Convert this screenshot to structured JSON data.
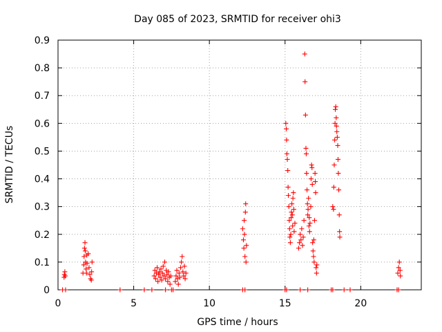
{
  "chart_data": {
    "type": "scatter",
    "title": "Day 085 of 2023, SRMTID for receiver ohi3",
    "xlabel": "GPS time / hours",
    "ylabel": "SRMTID / TECUs",
    "xlim": [
      0,
      24
    ],
    "ylim": [
      0,
      0.9
    ],
    "xticks": [
      0,
      5,
      10,
      15,
      20
    ],
    "xtick_labels": [
      "0",
      "5",
      "10",
      "15",
      "20"
    ],
    "yticks": [
      0,
      0.1,
      0.2,
      0.3,
      0.4,
      0.5,
      0.6,
      0.7,
      0.8,
      0.9
    ],
    "ytick_labels": [
      "0",
      "0.1",
      "0.2",
      "0.3",
      "0.4",
      "0.5",
      "0.6",
      "0.7",
      "0.8",
      "0.9"
    ],
    "grid": true,
    "legend": "none",
    "marker": "plus",
    "color": "#ff0000",
    "series": [
      {
        "name": "SRMTID",
        "points": [
          [
            0.3,
            0.0
          ],
          [
            0.5,
            0.0
          ],
          [
            4.1,
            0.0
          ],
          [
            5.7,
            0.0
          ],
          [
            6.2,
            0.0
          ],
          [
            7.1,
            0.0
          ],
          [
            7.5,
            0.0
          ],
          [
            7.6,
            0.0
          ],
          [
            12.2,
            0.0
          ],
          [
            12.35,
            0.0
          ],
          [
            15.0,
            0.0
          ],
          [
            15.1,
            0.0
          ],
          [
            16.0,
            0.0
          ],
          [
            16.5,
            0.0
          ],
          [
            18.05,
            0.0
          ],
          [
            18.15,
            0.0
          ],
          [
            18.9,
            0.0
          ],
          [
            19.3,
            0.0
          ],
          [
            22.4,
            0.0
          ],
          [
            22.5,
            0.0
          ],
          [
            0.4,
            0.045
          ],
          [
            0.42,
            0.055
          ],
          [
            0.45,
            0.065
          ],
          [
            0.48,
            0.05
          ],
          [
            1.65,
            0.06
          ],
          [
            1.7,
            0.09
          ],
          [
            1.72,
            0.12
          ],
          [
            1.75,
            0.15
          ],
          [
            1.78,
            0.17
          ],
          [
            1.8,
            0.14
          ],
          [
            1.82,
            0.1
          ],
          [
            1.85,
            0.075
          ],
          [
            1.88,
            0.06
          ],
          [
            1.9,
            0.125
          ],
          [
            1.92,
            0.095
          ],
          [
            2.0,
            0.13
          ],
          [
            2.05,
            0.08
          ],
          [
            2.1,
            0.055
          ],
          [
            2.15,
            0.04
          ],
          [
            2.2,
            0.035
          ],
          [
            2.22,
            0.065
          ],
          [
            2.25,
            0.1
          ],
          [
            6.35,
            0.05
          ],
          [
            6.4,
            0.07
          ],
          [
            6.45,
            0.04
          ],
          [
            6.5,
            0.06
          ],
          [
            6.55,
            0.08
          ],
          [
            6.6,
            0.03
          ],
          [
            6.65,
            0.055
          ],
          [
            6.7,
            0.065
          ],
          [
            6.75,
            0.045
          ],
          [
            6.8,
            0.075
          ],
          [
            6.85,
            0.035
          ],
          [
            6.9,
            0.06
          ],
          [
            6.95,
            0.085
          ],
          [
            7.0,
            0.05
          ],
          [
            7.05,
            0.1
          ],
          [
            7.1,
            0.04
          ],
          [
            7.15,
            0.07
          ],
          [
            7.2,
            0.055
          ],
          [
            7.25,
            0.03
          ],
          [
            7.3,
            0.065
          ],
          [
            7.35,
            0.045
          ],
          [
            7.4,
            0.02
          ],
          [
            7.45,
            0.05
          ],
          [
            7.75,
            0.03
          ],
          [
            7.8,
            0.05
          ],
          [
            7.85,
            0.07
          ],
          [
            7.9,
            0.04
          ],
          [
            7.95,
            0.02
          ],
          [
            8.0,
            0.06
          ],
          [
            8.05,
            0.045
          ],
          [
            8.1,
            0.08
          ],
          [
            8.15,
            0.1
          ],
          [
            8.2,
            0.12
          ],
          [
            8.25,
            0.065
          ],
          [
            8.3,
            0.05
          ],
          [
            8.35,
            0.085
          ],
          [
            8.4,
            0.04
          ],
          [
            8.45,
            0.06
          ],
          [
            12.2,
            0.22
          ],
          [
            12.25,
            0.18
          ],
          [
            12.28,
            0.15
          ],
          [
            12.3,
            0.25
          ],
          [
            12.32,
            0.2
          ],
          [
            12.35,
            0.12
          ],
          [
            12.38,
            0.28
          ],
          [
            12.4,
            0.31
          ],
          [
            12.42,
            0.1
          ],
          [
            12.45,
            0.16
          ],
          [
            15.05,
            0.6
          ],
          [
            15.08,
            0.58
          ],
          [
            15.1,
            0.54
          ],
          [
            15.12,
            0.49
          ],
          [
            15.15,
            0.47
          ],
          [
            15.18,
            0.43
          ],
          [
            15.2,
            0.37
          ],
          [
            15.22,
            0.34
          ],
          [
            15.25,
            0.3
          ],
          [
            15.28,
            0.25
          ],
          [
            15.3,
            0.22
          ],
          [
            15.32,
            0.19
          ],
          [
            15.35,
            0.17
          ],
          [
            15.38,
            0.2
          ],
          [
            15.4,
            0.26
          ],
          [
            15.42,
            0.28
          ],
          [
            15.45,
            0.31
          ],
          [
            15.48,
            0.27
          ],
          [
            15.5,
            0.23
          ],
          [
            15.52,
            0.33
          ],
          [
            15.55,
            0.35
          ],
          [
            15.58,
            0.29
          ],
          [
            15.6,
            0.21
          ],
          [
            15.65,
            0.24
          ],
          [
            15.9,
            0.15
          ],
          [
            15.95,
            0.17
          ],
          [
            16.0,
            0.2
          ],
          [
            16.05,
            0.18
          ],
          [
            16.1,
            0.22
          ],
          [
            16.15,
            0.16
          ],
          [
            16.2,
            0.19
          ],
          [
            16.25,
            0.25
          ],
          [
            16.3,
            0.85
          ],
          [
            16.32,
            0.75
          ],
          [
            16.35,
            0.63
          ],
          [
            16.38,
            0.51
          ],
          [
            16.4,
            0.49
          ],
          [
            16.42,
            0.42
          ],
          [
            16.45,
            0.36
          ],
          [
            16.48,
            0.31
          ],
          [
            16.5,
            0.27
          ],
          [
            16.52,
            0.29
          ],
          [
            16.55,
            0.33
          ],
          [
            16.58,
            0.23
          ],
          [
            16.6,
            0.26
          ],
          [
            16.62,
            0.21
          ],
          [
            16.65,
            0.24
          ],
          [
            16.7,
            0.3
          ],
          [
            16.72,
            0.4
          ],
          [
            16.75,
            0.45
          ],
          [
            16.78,
            0.44
          ],
          [
            16.8,
            0.38
          ],
          [
            16.82,
            0.17
          ],
          [
            16.85,
            0.14
          ],
          [
            16.88,
            0.12
          ],
          [
            16.9,
            0.18
          ],
          [
            16.92,
            0.1
          ],
          [
            16.95,
            0.25
          ],
          [
            16.98,
            0.42
          ],
          [
            17.0,
            0.39
          ],
          [
            17.02,
            0.35
          ],
          [
            17.05,
            0.08
          ],
          [
            17.08,
            0.06
          ],
          [
            17.1,
            0.09
          ],
          [
            18.15,
            0.3
          ],
          [
            18.2,
            0.29
          ],
          [
            18.22,
            0.37
          ],
          [
            18.25,
            0.45
          ],
          [
            18.28,
            0.54
          ],
          [
            18.3,
            0.6
          ],
          [
            18.32,
            0.65
          ],
          [
            18.35,
            0.66
          ],
          [
            18.38,
            0.62
          ],
          [
            18.4,
            0.59
          ],
          [
            18.42,
            0.57
          ],
          [
            18.45,
            0.55
          ],
          [
            18.48,
            0.52
          ],
          [
            18.5,
            0.47
          ],
          [
            18.52,
            0.42
          ],
          [
            18.55,
            0.36
          ],
          [
            18.58,
            0.27
          ],
          [
            18.6,
            0.21
          ],
          [
            18.62,
            0.19
          ],
          [
            22.45,
            0.06
          ],
          [
            22.5,
            0.08
          ],
          [
            22.55,
            0.1
          ],
          [
            22.6,
            0.07
          ],
          [
            22.62,
            0.05
          ]
        ]
      }
    ]
  }
}
